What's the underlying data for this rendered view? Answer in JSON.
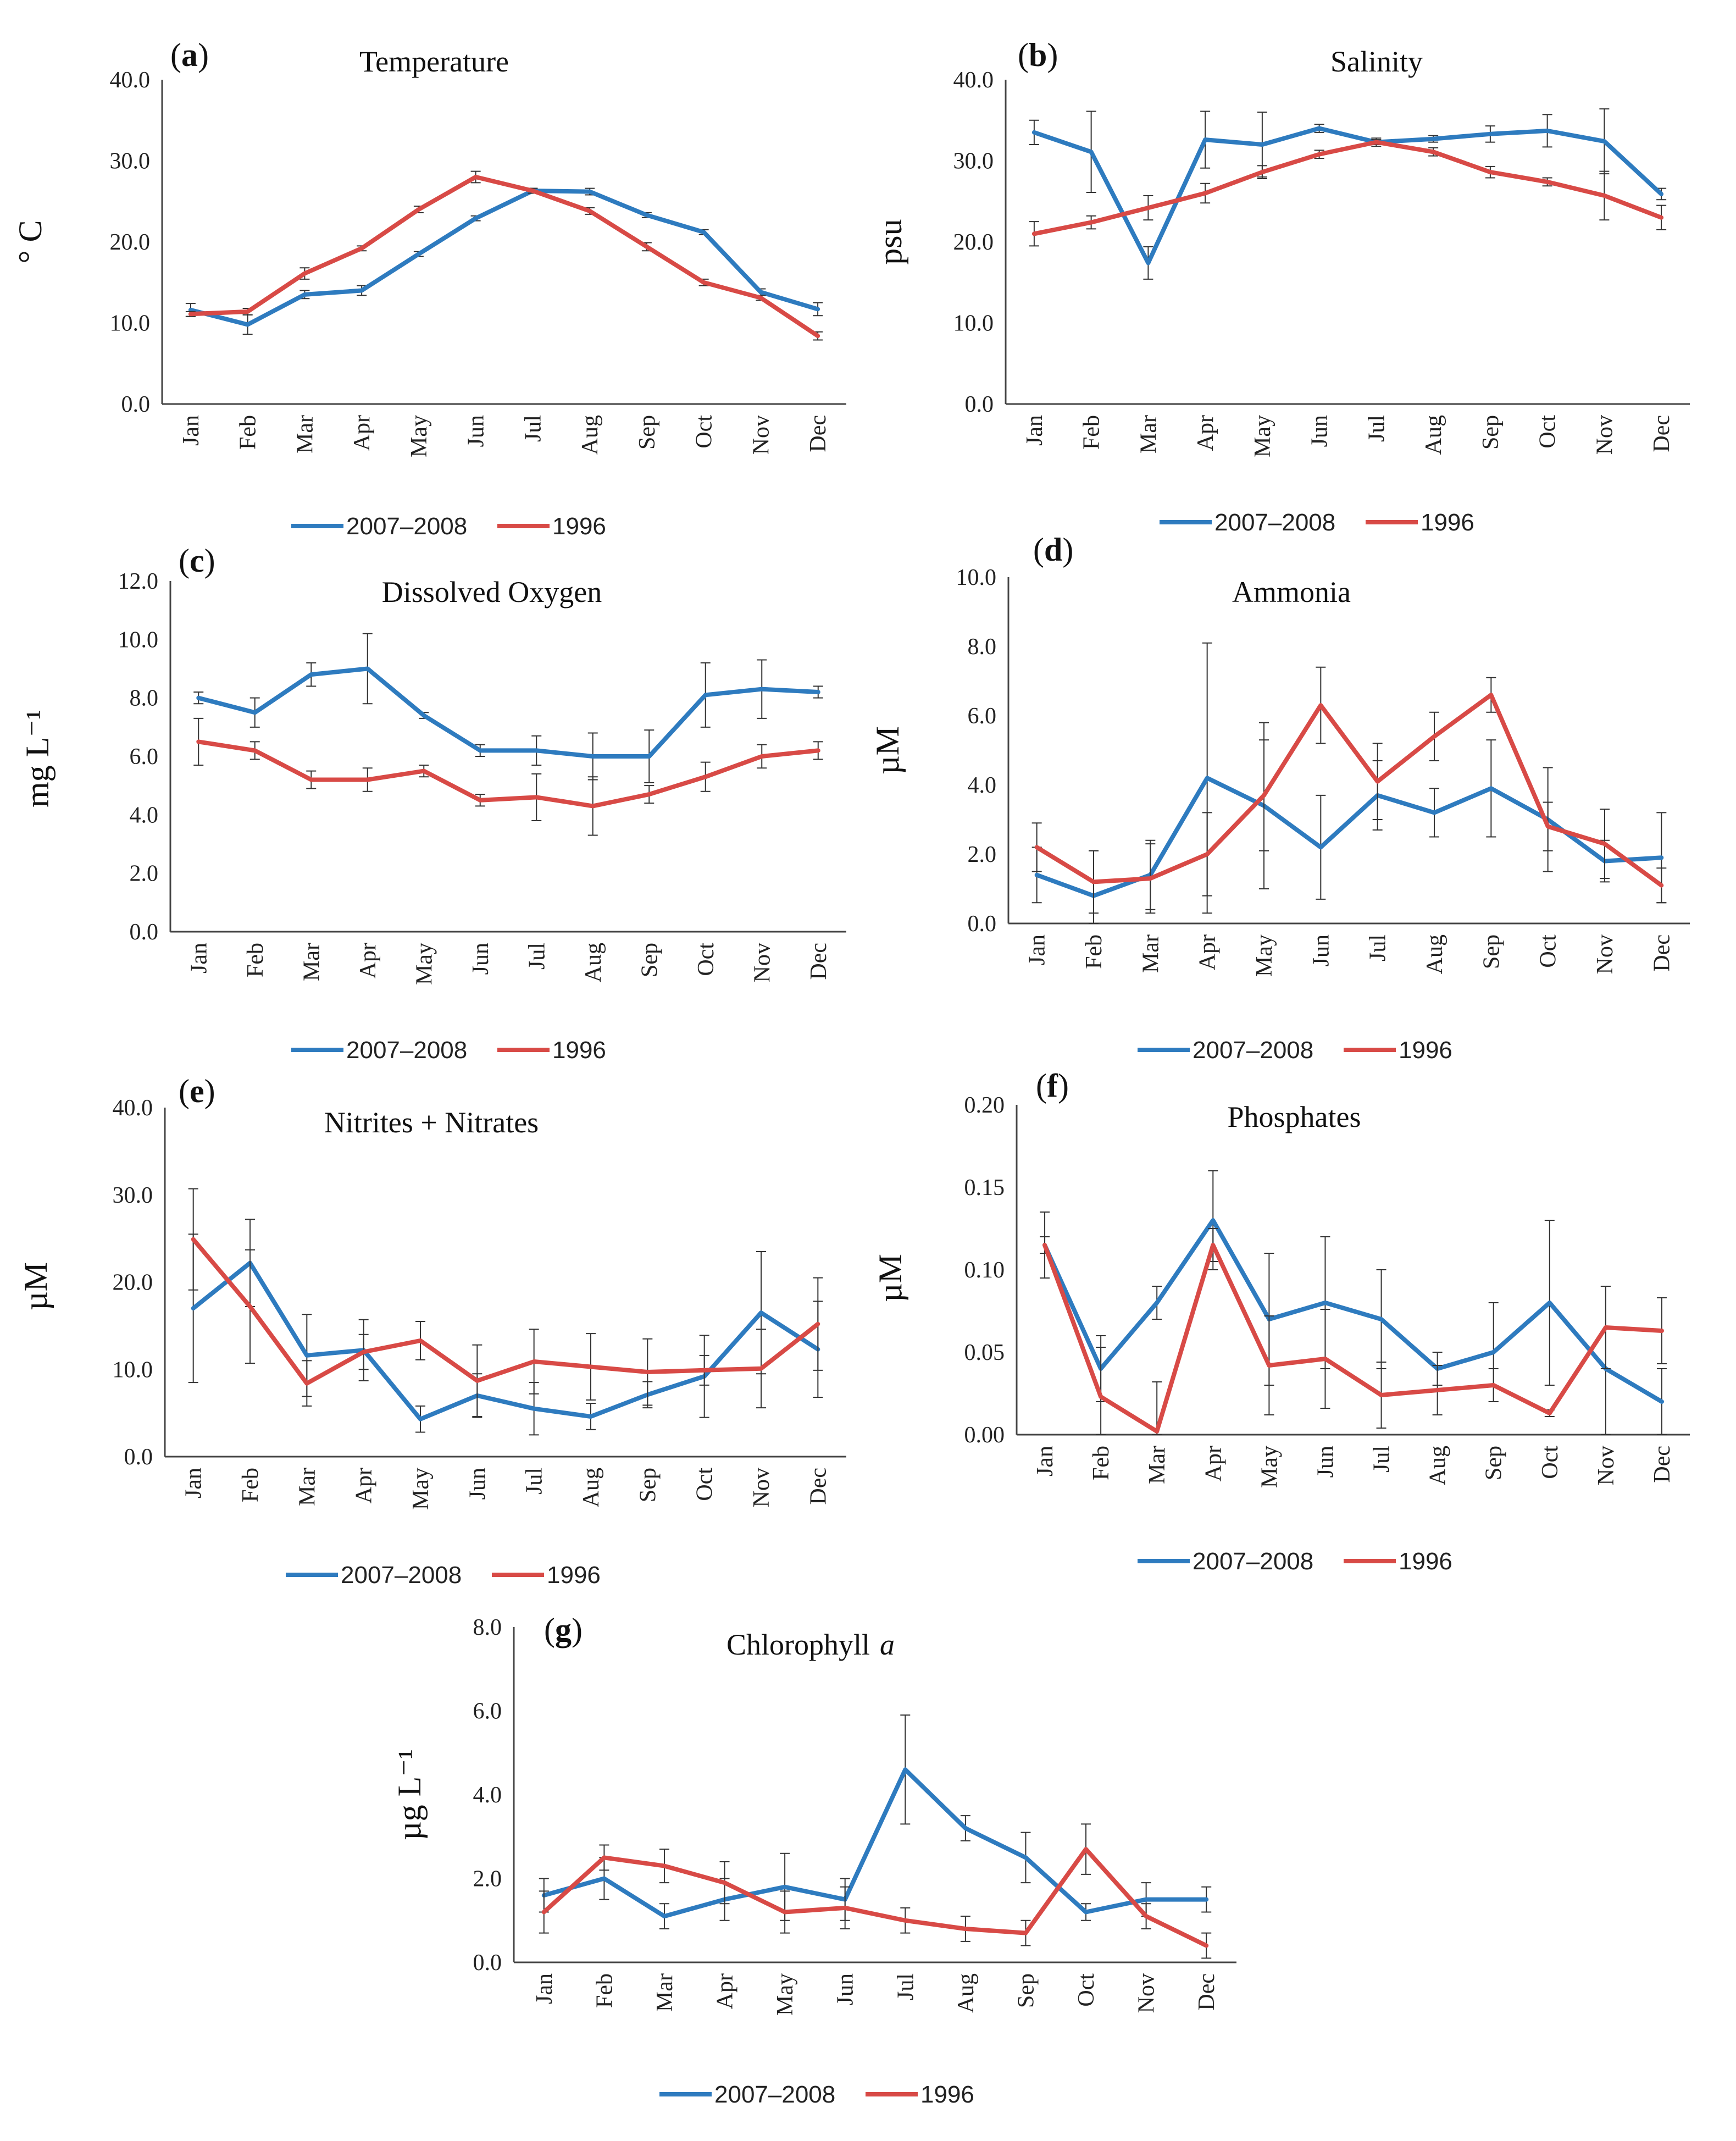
{
  "colors": {
    "series_a": "#2e7bbf",
    "series_b": "#d84a46",
    "axis": "#444444",
    "error": "#333333"
  },
  "chart_data": [
    {
      "panel": "(a)",
      "panel_letter": "a",
      "type": "line",
      "title": "Temperature",
      "title_italic": "",
      "ylabel": "° C",
      "ylim": [
        0,
        40
      ],
      "yticks": [
        "0.0",
        "10.0",
        "20.0",
        "30.0",
        "40.0"
      ],
      "categories": [
        "Jan",
        "Feb",
        "Mar",
        "Apr",
        "May",
        "Jun",
        "Jul",
        "Aug",
        "Sep",
        "Oct",
        "Nov",
        "Dec"
      ],
      "series": [
        {
          "name": "2007–2008",
          "values": [
            11.6,
            9.8,
            13.5,
            14.0,
            18.5,
            22.9,
            26.3,
            26.2,
            23.3,
            21.2,
            13.8,
            11.7
          ],
          "errors": [
            0.8,
            1.2,
            0.5,
            0.6,
            0.3,
            0.3,
            0.3,
            0.4,
            0.3,
            0.3,
            0.4,
            0.8
          ]
        },
        {
          "name": "1996",
          "values": [
            11.1,
            11.4,
            16.1,
            19.2,
            24.0,
            28.0,
            26.3,
            23.8,
            19.4,
            15.0,
            13.1,
            8.4
          ],
          "errors": [
            0.3,
            0.4,
            0.7,
            0.3,
            0.4,
            0.7,
            0.3,
            0.4,
            0.5,
            0.4,
            0.3,
            0.5
          ]
        }
      ]
    },
    {
      "panel": "(b)",
      "panel_letter": "b",
      "type": "line",
      "title": "Salinity",
      "title_italic": "",
      "ylabel": "psu",
      "ylim": [
        0,
        40
      ],
      "yticks": [
        "0.0",
        "10.0",
        "20.0",
        "30.0",
        "40.0"
      ],
      "categories": [
        "Jan",
        "Feb",
        "Mar",
        "Apr",
        "May",
        "Jun",
        "Jul",
        "Aug",
        "Sep",
        "Oct",
        "Nov",
        "Dec"
      ],
      "series": [
        {
          "name": "2007–2008",
          "values": [
            33.5,
            31.1,
            17.4,
            32.6,
            32.0,
            34.0,
            32.3,
            32.7,
            33.3,
            33.7,
            32.4,
            25.9
          ],
          "errors": [
            1.5,
            5.0,
            2.0,
            3.5,
            4.0,
            0.5,
            0.5,
            0.4,
            1.0,
            2.0,
            4.0,
            0.7
          ]
        },
        {
          "name": "1996",
          "values": [
            21.0,
            22.4,
            24.2,
            26.0,
            28.6,
            30.8,
            32.3,
            31.1,
            28.6,
            27.4,
            25.7,
            23.0
          ],
          "errors": [
            1.5,
            0.8,
            1.5,
            1.2,
            0.8,
            0.5,
            0.3,
            0.5,
            0.7,
            0.5,
            3.0,
            1.5
          ]
        }
      ]
    },
    {
      "panel": "(c)",
      "panel_letter": "c",
      "type": "line",
      "title": "Dissolved Oxygen",
      "title_italic": "",
      "ylabel": "mg L⁻¹",
      "ylim": [
        0,
        12
      ],
      "yticks": [
        "0.0",
        "2.0",
        "4.0",
        "6.0",
        "8.0",
        "10.0",
        "12.0"
      ],
      "categories": [
        "Jan",
        "Feb",
        "Mar",
        "Apr",
        "May",
        "Jun",
        "Jul",
        "Aug",
        "Sep",
        "Oct",
        "Nov",
        "Dec"
      ],
      "series": [
        {
          "name": "2007–2008",
          "values": [
            8.0,
            7.5,
            8.8,
            9.0,
            7.4,
            6.2,
            6.2,
            6.0,
            6.0,
            8.1,
            8.3,
            8.2
          ],
          "errors": [
            0.2,
            0.5,
            0.4,
            1.2,
            0.1,
            0.2,
            0.5,
            0.8,
            0.9,
            1.1,
            1.0,
            0.2
          ]
        },
        {
          "name": "1996",
          "values": [
            6.5,
            6.2,
            5.2,
            5.2,
            5.5,
            4.5,
            4.6,
            4.3,
            4.7,
            5.3,
            6.0,
            6.2
          ],
          "errors": [
            0.8,
            0.3,
            0.3,
            0.4,
            0.2,
            0.2,
            0.8,
            1.0,
            0.3,
            0.5,
            0.4,
            0.3
          ]
        }
      ]
    },
    {
      "panel": "(d)",
      "panel_letter": "d",
      "type": "line",
      "title": "Ammonia",
      "title_italic": "",
      "ylabel": "µM",
      "ylim": [
        0,
        10
      ],
      "yticks": [
        "0.0",
        "2.0",
        "4.0",
        "6.0",
        "8.0",
        "10.0"
      ],
      "categories": [
        "Jan",
        "Feb",
        "Mar",
        "Apr",
        "May",
        "Jun",
        "Jul",
        "Aug",
        "Sep",
        "Oct",
        "Nov",
        "Dec"
      ],
      "series": [
        {
          "name": "2007–2008",
          "values": [
            1.4,
            0.8,
            1.4,
            4.2,
            3.4,
            2.2,
            3.7,
            3.2,
            3.9,
            3.0,
            1.8,
            1.9
          ],
          "errors": [
            0.8,
            1.3,
            1.0,
            3.9,
            2.4,
            1.5,
            1.0,
            0.7,
            1.4,
            1.5,
            0.6,
            1.3
          ]
        },
        {
          "name": "1996",
          "values": [
            2.2,
            1.2,
            1.3,
            2.0,
            3.7,
            6.3,
            4.1,
            5.4,
            6.6,
            2.8,
            2.3,
            1.1
          ],
          "errors": [
            0.7,
            0.9,
            1.0,
            1.2,
            1.6,
            1.1,
            1.1,
            0.7,
            0.5,
            0.7,
            1.0,
            0.5
          ]
        }
      ]
    },
    {
      "panel": "(e)",
      "panel_letter": "e",
      "type": "line",
      "title": "Nitrites + Nitrates",
      "title_italic": "",
      "ylabel": "µM",
      "ylim": [
        0,
        40
      ],
      "yticks": [
        "0.0",
        "10.0",
        "20.0",
        "30.0",
        "40.0"
      ],
      "categories": [
        "Jan",
        "Feb",
        "Mar",
        "Apr",
        "May",
        "Jun",
        "Jul",
        "Aug",
        "Sep",
        "Oct",
        "Nov",
        "Dec"
      ],
      "series": [
        {
          "name": "2007–2008",
          "values": [
            17.0,
            22.2,
            11.6,
            12.2,
            4.3,
            7.0,
            5.5,
            4.6,
            7.1,
            9.2,
            16.5,
            12.3
          ],
          "errors": [
            8.5,
            5.0,
            4.7,
            3.5,
            1.5,
            2.5,
            3.0,
            1.5,
            1.5,
            4.7,
            7.0,
            5.5
          ]
        },
        {
          "name": "1996",
          "values": [
            24.9,
            17.2,
            8.4,
            12.0,
            13.3,
            8.7,
            10.9,
            10.3,
            9.7,
            9.9,
            10.1,
            15.2
          ],
          "errors": [
            5.8,
            6.5,
            2.6,
            2.0,
            2.2,
            4.1,
            3.7,
            3.8,
            3.8,
            1.7,
            4.5,
            5.3
          ]
        }
      ]
    },
    {
      "panel": "(f)",
      "panel_letter": "f",
      "type": "line",
      "title": "Phosphates",
      "title_italic": "",
      "ylabel": "µM",
      "ylim": [
        0,
        0.2
      ],
      "yticks": [
        "0.00",
        "0.05",
        "0.10",
        "0.15",
        "0.20"
      ],
      "categories": [
        "Jan",
        "Feb",
        "Mar",
        "Apr",
        "May",
        "Jun",
        "Jul",
        "Aug",
        "Sep",
        "Oct",
        "Nov",
        "Dec"
      ],
      "series": [
        {
          "name": "2007–2008",
          "values": [
            0.115,
            0.04,
            0.08,
            0.13,
            0.07,
            0.08,
            0.07,
            0.04,
            0.05,
            0.08,
            0.04,
            0.02
          ],
          "errors": [
            0.02,
            0.02,
            0.01,
            0.03,
            0.04,
            0.04,
            0.03,
            0.01,
            0.03,
            0.05,
            0.05,
            0.02
          ]
        },
        {
          "name": "1996",
          "values": [
            0.115,
            0.023,
            0.002,
            0.115,
            0.042,
            0.046,
            0.024,
            0.027,
            0.03,
            0.013,
            0.065,
            0.063
          ],
          "errors": [
            0.005,
            0.03,
            0.03,
            0.01,
            0.03,
            0.03,
            0.02,
            0.015,
            0.01,
            0.002,
            0.025,
            0.02
          ]
        }
      ]
    },
    {
      "panel": "(g)",
      "panel_letter": "g",
      "type": "line",
      "title": "Chlorophyll",
      "title_italic": "a",
      "ylabel": "µg L⁻¹",
      "ylim": [
        0,
        8
      ],
      "yticks": [
        "0.0",
        "2.0",
        "4.0",
        "6.0",
        "8.0"
      ],
      "categories": [
        "Jan",
        "Feb",
        "Mar",
        "Apr",
        "May",
        "Jun",
        "Jul",
        "Aug",
        "Sep",
        "Oct",
        "Nov",
        "Dec"
      ],
      "series": [
        {
          "name": "2007–2008",
          "values": [
            1.6,
            2.0,
            1.1,
            1.5,
            1.8,
            1.5,
            4.6,
            3.2,
            2.5,
            1.2,
            1.5,
            1.5
          ],
          "errors": [
            0.4,
            0.5,
            0.3,
            0.5,
            0.8,
            0.5,
            1.3,
            0.3,
            0.6,
            0.2,
            0.4,
            0.3
          ]
        },
        {
          "name": "1996",
          "values": [
            1.2,
            2.5,
            2.3,
            1.9,
            1.2,
            1.3,
            1.0,
            0.8,
            0.7,
            2.7,
            1.1,
            0.4
          ],
          "errors": [
            0.5,
            0.3,
            0.4,
            0.5,
            0.5,
            0.5,
            0.3,
            0.3,
            0.3,
            0.6,
            0.3,
            0.3
          ]
        }
      ]
    }
  ]
}
